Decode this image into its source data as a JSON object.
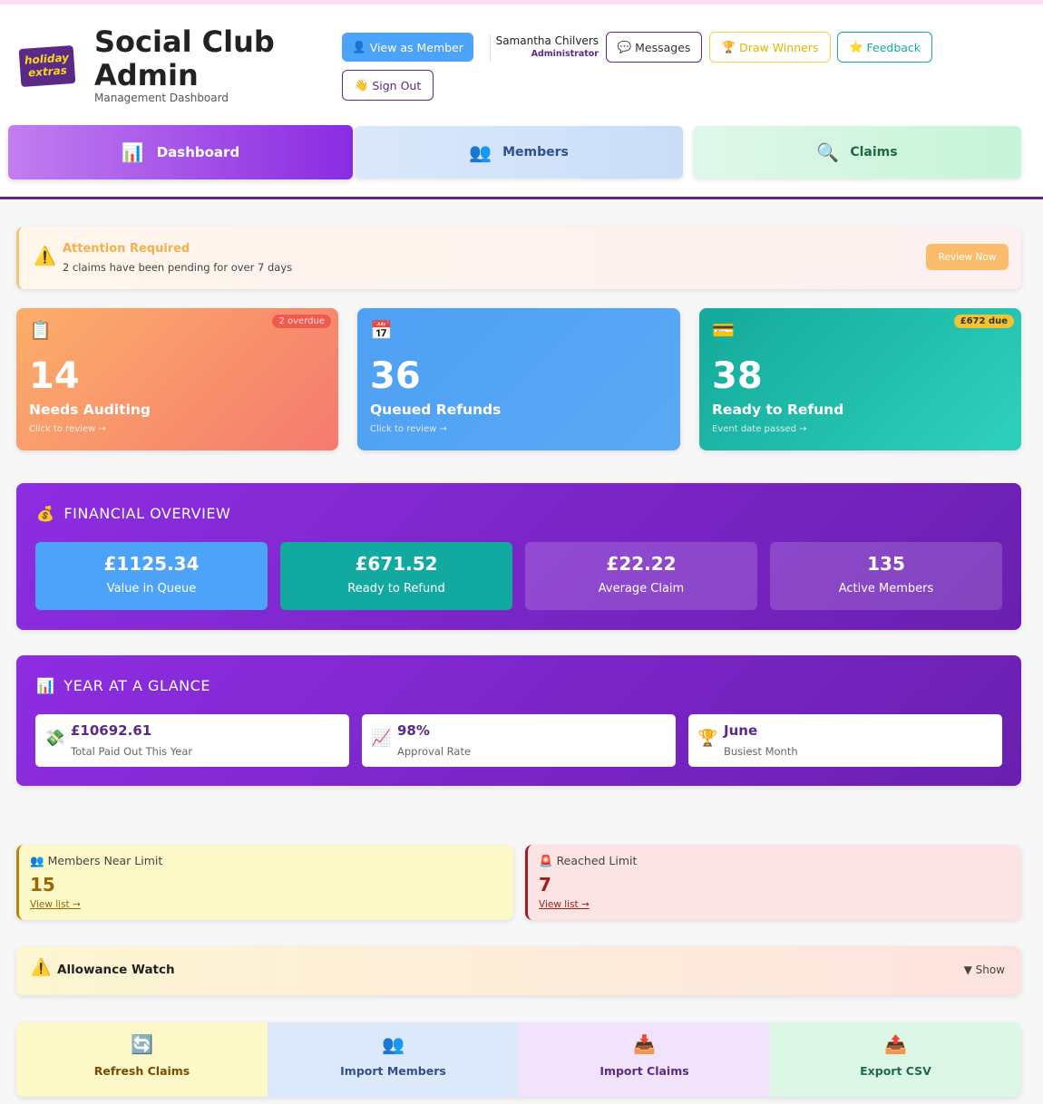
{
  "header": {
    "logo": [
      "holiday",
      "extras"
    ],
    "title": "Social Club Admin",
    "subtitle": "Management Dashboard",
    "buttons": {
      "view_as_member": "View as Member",
      "sign_out": "Sign Out",
      "messages": "Messages",
      "draw_winners": "Draw Winners",
      "feedback": "Feedback"
    },
    "user": {
      "name": "Samantha Chilvers",
      "role": "Administrator"
    }
  },
  "nav": [
    "Dashboard",
    "Members",
    "Claims"
  ],
  "alert": {
    "title": "Attention Required",
    "text": "2 claims have been pending for over 7 days",
    "button": "Review Now"
  },
  "stat_cards": [
    {
      "value": 14,
      "label": "Needs Auditing",
      "hint": "Click to review →",
      "badge": "2 overdue"
    },
    {
      "value": 36,
      "label": "Queued Refunds",
      "hint": "Click to review →"
    },
    {
      "value": 38,
      "label": "Ready to Refund",
      "hint": "Event date passed →",
      "badge": "£672 due"
    }
  ],
  "financial": {
    "title": "FINANCIAL OVERVIEW",
    "items": [
      {
        "value": "£1125.34",
        "label": "Value in Queue"
      },
      {
        "value": "£671.52",
        "label": "Ready to Refund"
      },
      {
        "value": "£22.22",
        "label": "Average Claim"
      },
      {
        "value": "135",
        "label": "Active Members"
      }
    ]
  },
  "year": {
    "title": "YEAR AT A GLANCE",
    "items": [
      {
        "value": "£10692.61",
        "label": "Total Paid Out This Year"
      },
      {
        "value": "98%",
        "label": "Approval Rate"
      },
      {
        "value": "June",
        "label": "Busiest Month"
      }
    ]
  },
  "limits": [
    {
      "label": "Members Near Limit",
      "value": 15,
      "link": "View list →"
    },
    {
      "label": "Reached Limit",
      "value": 7,
      "link": "View list →"
    }
  ],
  "allowance": {
    "title": "Allowance Watch",
    "toggle": "▼ Show"
  },
  "actions": [
    "Refresh Claims",
    "Import Members",
    "Import Claims",
    "Export CSV"
  ]
}
